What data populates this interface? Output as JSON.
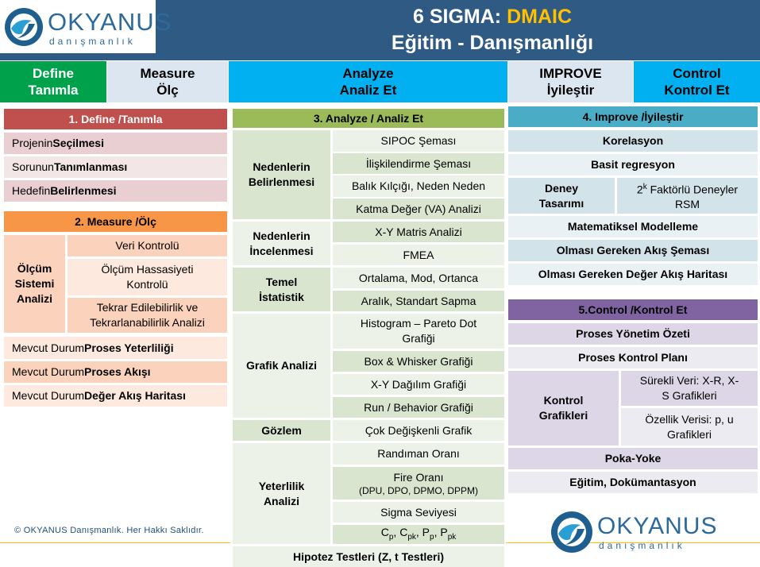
{
  "header": {
    "title_main": "6 SIGMA: ",
    "title_accent": "DMAIC",
    "subtitle": "Eğitim - Danışmanlığı"
  },
  "logo": {
    "name": "OKYANUS",
    "tagline": "danışmanlık"
  },
  "phases": {
    "define": {
      "line1": "Define",
      "line2": "Tanımla"
    },
    "measure": {
      "line1": "Measure",
      "line2": "Ölç"
    },
    "analyze": {
      "line1": "Analyze",
      "line2": "Analiz Et"
    },
    "improve": {
      "line1": "IMPROVE",
      "line2": "İyileştir"
    },
    "control": {
      "line1": "Control",
      "line2": "Kontrol Et"
    }
  },
  "define": {
    "header": "1. Define /Tanımla",
    "items": [
      {
        "pre": "Projenin ",
        "bold": "Seçilmesi"
      },
      {
        "pre": "Sorunun ",
        "bold": "Tanımlanması"
      },
      {
        "pre": "Hedefin ",
        "bold": "Belirlenmesi"
      }
    ]
  },
  "measure": {
    "header": "2.  Measure /Ölç",
    "group_label": "Ölçüm Sistemi Analizi",
    "group_items": [
      "Veri Kontrolü",
      "Ölçüm Hassasiyeti Kontrolü",
      "Tekrar Edilebilirlik ve Tekrarlanabilirlik Analizi"
    ],
    "items": [
      {
        "pre": "Mevcut Durum ",
        "bold": "Proses Yeterliliği"
      },
      {
        "pre": "Mevcut Durum ",
        "bold": "Proses Akışı"
      },
      {
        "pre": "Mevcut Durum ",
        "bold": "Değer Akış Haritası"
      }
    ]
  },
  "analyze": {
    "header": "3. Analyze / Analiz Et",
    "groups": [
      "Nedenlerin Belirlenmesi",
      "Nedenlerin İncelenmesi",
      "Temel İstatistik",
      "Grafik Analizi",
      "Gözlem",
      "Yeterlilik Analizi"
    ],
    "items": [
      "SIPOC Şeması",
      "İlişkilendirme Şeması",
      "Balık Kılçığı, Neden Neden",
      "Katma Değer (VA) Analizi",
      "X-Y Matris Analizi",
      "FMEA",
      "Ortalama, Mod, Ortanca",
      "Aralık, Standart Sapma",
      "Histogram – Pareto Dot Grafiği",
      "Box & Whisker Grafiği",
      "X-Y Dağılım Grafiği",
      "Run / Behavior Grafiği",
      "Çok Değişkenli Grafik",
      "Randıman Oranı",
      "Fire Oranı",
      "(DPU, DPO, DPMO, DPPM)",
      "Sigma Seviyesi"
    ],
    "indices": {
      "c": "C",
      "p": "p",
      "pk": "pk",
      "P": "P",
      "sep": ", "
    },
    "footer": "Hipotez Testleri (Z, t Testleri)"
  },
  "improve": {
    "header": "4. Improve /İyileştir",
    "items": [
      "Korelasyon",
      "Basit regresyon",
      "Matematiksel Modelleme",
      "Olması Gereken Akış Şeması",
      "Olması Gereken Değer Akış Haritası"
    ],
    "deney_label": "Deney Tasarımı",
    "factorial_base": "2",
    "factorial_sup": "k",
    "factorial_rest": " Faktörlü Deneyler RSM"
  },
  "control": {
    "header": "5.Control /Kontrol Et",
    "items": [
      "Proses Yönetim Özeti",
      "Proses Kontrol Planı",
      "Poka-Yoke",
      "Eğitim, Dokümantasyon"
    ],
    "chart_label": "Kontrol Grafikleri",
    "chart_items": [
      "Sürekli Veri: X-R, X-S Grafikleri",
      "Özellik Verisi: p, u Grafikleri"
    ]
  },
  "footer": {
    "copyright": "© OKYANUS Danışmanlık. Her Hakkı Saklıdır."
  },
  "colors": {
    "header_bg": "#2f5a83",
    "accent": "#ffc000",
    "define": "#00a14b",
    "measure": "#dce6f1",
    "analyze": "#00b0f0",
    "improve": "#dce6f1",
    "control": "#00b0f0",
    "define_hd": "#c0504d",
    "measure_hd": "#f79646",
    "analyze_hd": "#9bbb59",
    "improve_hd": "#4bacc6",
    "control_hd": "#8064a2"
  }
}
